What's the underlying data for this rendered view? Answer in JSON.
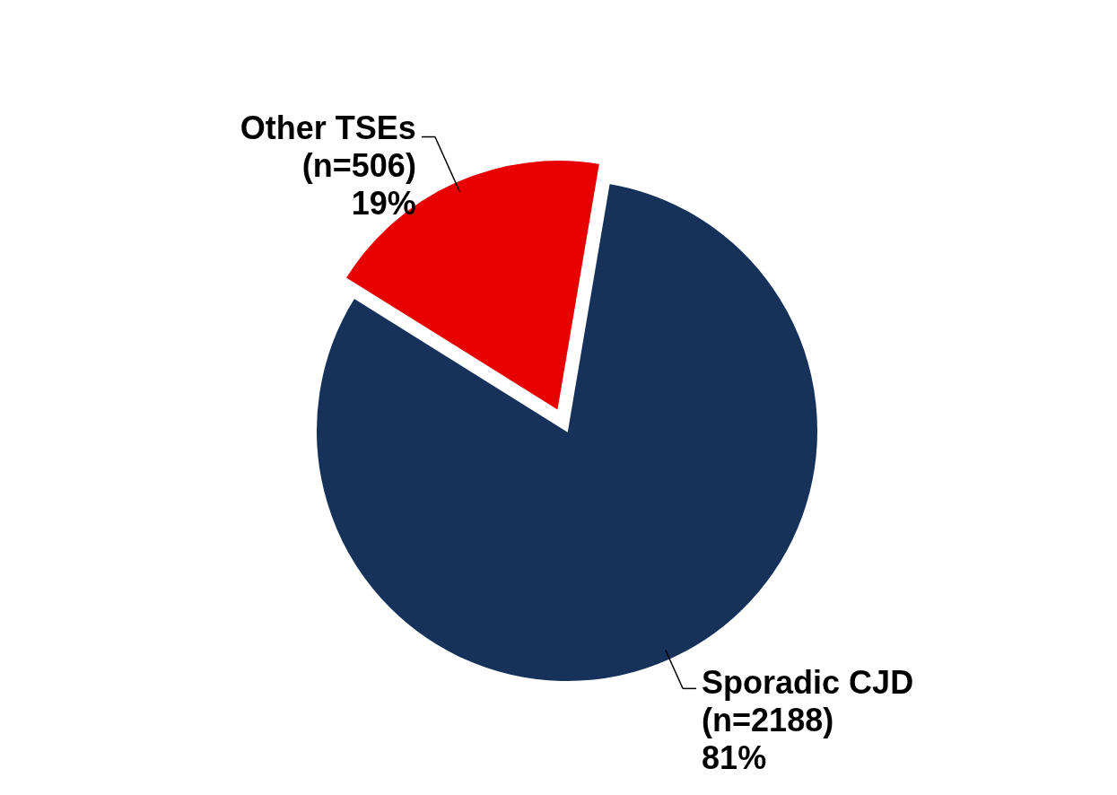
{
  "chart_data": {
    "type": "pie",
    "categories": [
      "Other TSEs",
      "Sporadic CJD"
    ],
    "values": [
      506,
      2188
    ],
    "colors": [
      "#e80000",
      "#17325a"
    ],
    "value_labels": [
      "(n=506)\n19%",
      "(n=2188)\n81%"
    ]
  }
}
